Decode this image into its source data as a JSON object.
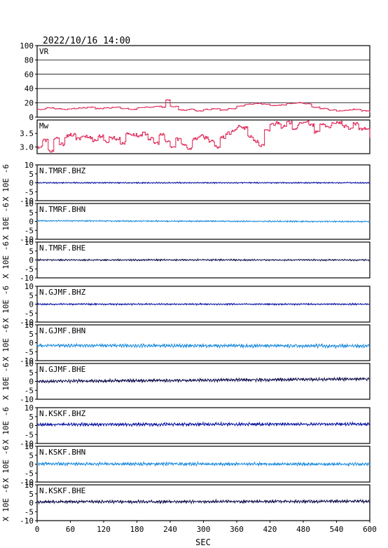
{
  "chart_data": {
    "type": "line",
    "title": "2022/10/16 14:00",
    "xlabel": "SEC",
    "xlim": [
      0,
      600
    ],
    "xticks": [
      "0",
      "60",
      "120",
      "180",
      "240",
      "300",
      "360",
      "420",
      "480",
      "540",
      "600"
    ],
    "panels": [
      {
        "id": "vr",
        "label": "VR",
        "ylim": [
          0,
          100
        ],
        "yticks": [
          "100",
          "80",
          "60",
          "40",
          "20",
          "0"
        ],
        "color": "#dc1e50",
        "style": "step",
        "x": [
          0,
          15,
          30,
          45,
          60,
          75,
          90,
          105,
          120,
          135,
          150,
          165,
          180,
          195,
          210,
          225,
          232,
          240,
          255,
          270,
          285,
          300,
          315,
          330,
          345,
          360,
          375,
          390,
          405,
          420,
          435,
          450,
          465,
          480,
          495,
          510,
          525,
          540,
          555,
          570,
          585,
          600
        ],
        "values": [
          11,
          13,
          12,
          11,
          12,
          13,
          14,
          12,
          13,
          14,
          12,
          11,
          13,
          14,
          15,
          14,
          24,
          15,
          10,
          11,
          9,
          11,
          12,
          10,
          12,
          16,
          18,
          19,
          18,
          16,
          17,
          19,
          20,
          19,
          14,
          12,
          10,
          9,
          10,
          11,
          9,
          7
        ]
      },
      {
        "id": "mw",
        "label": "Mw",
        "ylim": [
          2.75,
          4.0
        ],
        "yticks": [
          "3.5",
          "3.0"
        ],
        "color": "#dc1e50",
        "style": "step",
        "x": [
          0,
          10,
          20,
          30,
          40,
          50,
          60,
          70,
          80,
          90,
          100,
          110,
          120,
          130,
          140,
          150,
          160,
          170,
          180,
          190,
          200,
          210,
          220,
          230,
          240,
          250,
          260,
          270,
          280,
          290,
          300,
          310,
          320,
          330,
          340,
          350,
          360,
          370,
          380,
          390,
          400,
          410,
          420,
          430,
          440,
          450,
          460,
          470,
          480,
          490,
          500,
          510,
          520,
          530,
          540,
          550,
          560,
          570,
          580,
          590,
          600
        ],
        "values": [
          3.0,
          3.25,
          2.85,
          3.3,
          3.1,
          3.4,
          3.45,
          3.3,
          3.4,
          3.35,
          3.25,
          3.4,
          3.2,
          3.35,
          3.3,
          3.15,
          3.5,
          3.45,
          3.4,
          3.5,
          3.3,
          3.15,
          3.45,
          3.2,
          3.0,
          3.3,
          3.1,
          2.95,
          3.3,
          3.4,
          3.35,
          3.2,
          3.0,
          3.35,
          3.5,
          3.6,
          3.75,
          3.7,
          3.4,
          3.2,
          3.05,
          3.6,
          3.85,
          3.9,
          3.75,
          3.9,
          3.7,
          3.85,
          3.95,
          3.8,
          3.55,
          3.85,
          3.75,
          3.85,
          3.9,
          3.75,
          3.7,
          3.85,
          3.65,
          3.7,
          3.4
        ]
      },
      {
        "id": "tmrf-bhz",
        "label": "N.TMRF.BHZ",
        "ylim": [
          -10,
          10
        ],
        "yticks": [
          "10",
          "5",
          "0",
          "-5",
          "-10"
        ],
        "color": "#0a14a0",
        "style": "wave",
        "amplitude": 0.35,
        "offset": [
          0.0,
          0.0
        ]
      },
      {
        "id": "tmrf-bhn",
        "label": "N.TMRF.BHN",
        "ylim": [
          -10,
          10
        ],
        "yticks": [
          "10",
          "5",
          "0",
          "-5",
          "-10"
        ],
        "color": "#1e8cdc",
        "style": "wave",
        "amplitude": 0.4,
        "offset": [
          0.3,
          -0.1
        ]
      },
      {
        "id": "tmrf-bhe",
        "label": "N.TMRF.BHE",
        "ylim": [
          -10,
          10
        ],
        "yticks": [
          "10",
          "5",
          "0",
          "-5",
          "-10"
        ],
        "color": "#141450",
        "style": "wave",
        "amplitude": 0.45,
        "offset": [
          0.0,
          0.0
        ]
      },
      {
        "id": "gjmf-bhz",
        "label": "N.GJMF.BHZ",
        "ylim": [
          -10,
          10
        ],
        "yticks": [
          "10",
          "5",
          "0",
          "-5",
          "-10"
        ],
        "color": "#0a14a0",
        "style": "wave",
        "amplitude": 0.45,
        "offset": [
          0.0,
          0.0
        ]
      },
      {
        "id": "gjmf-bhn",
        "label": "N.GJMF.BHN",
        "ylim": [
          -10,
          10
        ],
        "yticks": [
          "10",
          "5",
          "0",
          "-5",
          "-10"
        ],
        "color": "#1e8cdc",
        "style": "wave",
        "amplitude": 1.0,
        "offset": [
          -1.5,
          -1.8
        ]
      },
      {
        "id": "gjmf-bhe",
        "label": "N.GJMF.BHE",
        "ylim": [
          -10,
          10
        ],
        "yticks": [
          "10",
          "5",
          "0",
          "-5",
          "-10"
        ],
        "color": "#141450",
        "style": "wave",
        "amplitude": 0.9,
        "offset": [
          0.0,
          1.3
        ]
      },
      {
        "id": "kskf-bhz",
        "label": "N.KSKF.BHZ",
        "ylim": [
          -10,
          10
        ],
        "yticks": [
          "10",
          "5",
          "0",
          "-5",
          "-10"
        ],
        "color": "#0a14a0",
        "style": "wave",
        "amplitude": 0.9,
        "offset": [
          0.6,
          0.8
        ]
      },
      {
        "id": "kskf-bhn",
        "label": "N.KSKF.BHN",
        "ylim": [
          -10,
          10
        ],
        "yticks": [
          "10",
          "5",
          "0",
          "-5",
          "-10"
        ],
        "color": "#1e8cdc",
        "style": "wave",
        "amplitude": 0.9,
        "offset": [
          0.2,
          0.0
        ]
      },
      {
        "id": "kskf-bhe",
        "label": "N.KSKF.BHE",
        "ylim": [
          -10,
          10
        ],
        "yticks": [
          "10",
          "5",
          "0",
          "-5",
          "-10"
        ],
        "color": "#141450",
        "style": "wave",
        "amplitude": 0.85,
        "offset": [
          0.5,
          0.8
        ]
      }
    ],
    "waveform_ylabel": "X 10E -6",
    "grid": "horizontal gridlines on VR panel only"
  }
}
